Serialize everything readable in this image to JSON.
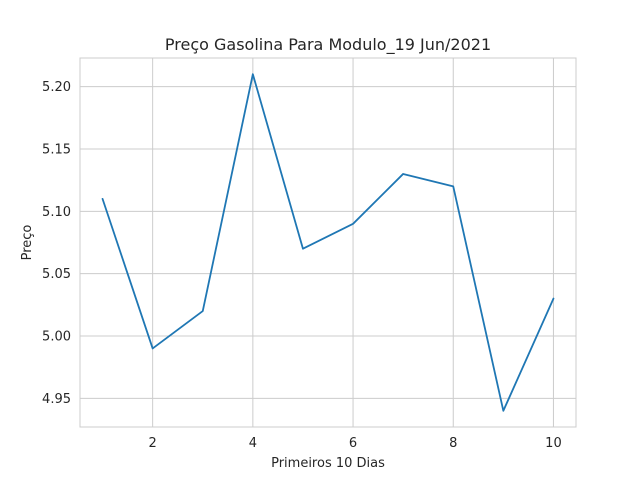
{
  "chart_data": {
    "type": "line",
    "title": "Preço Gasolina Para Modulo_19 Jun/2021",
    "xlabel": "Primeiros 10 Dias",
    "ylabel": "Preço",
    "x": [
      1,
      2,
      3,
      4,
      5,
      6,
      7,
      8,
      9,
      10
    ],
    "series": [
      {
        "values": [
          5.11,
          4.99,
          5.02,
          5.21,
          5.07,
          5.09,
          5.13,
          5.12,
          4.94,
          5.03
        ],
        "color": "#1f77b4"
      }
    ],
    "xticks": [
      2,
      4,
      6,
      8,
      10
    ],
    "xtick_labels": [
      "2",
      "4",
      "6",
      "8",
      "10"
    ],
    "yticks": [
      4.95,
      5.0,
      5.05,
      5.1,
      5.15,
      5.2
    ],
    "ytick_labels": [
      "4.95",
      "5.00",
      "5.05",
      "5.10",
      "5.15",
      "5.20"
    ],
    "xlim": [
      0.55,
      10.45
    ],
    "ylim": [
      4.927,
      5.223
    ],
    "grid": true,
    "grid_color": "#cccccc",
    "frame_color": "#cccccc",
    "legend": "none"
  }
}
